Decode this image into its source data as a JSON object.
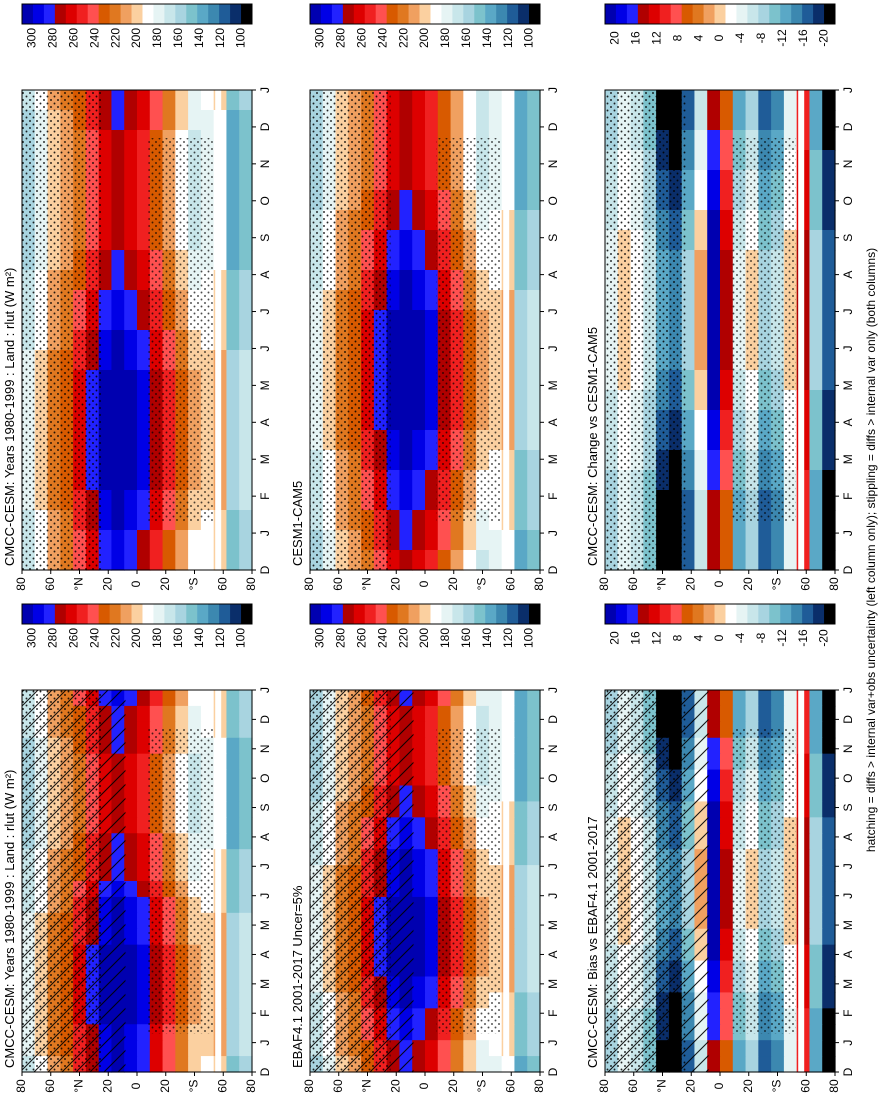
{
  "chart_data": [
    {
      "type": "heatmap",
      "id": "p1",
      "title": "CMCC-CESM: Years 1980-1999 : Land : rlut (W m²)",
      "x_ticks": [
        "D",
        "J",
        "F",
        "M",
        "A",
        "M",
        "J",
        "J",
        "A",
        "S",
        "O",
        "N",
        "D",
        "J"
      ],
      "y_ticks": [
        "80",
        "60",
        "°N",
        "20",
        "0",
        "20",
        "°S",
        "60",
        "80"
      ],
      "colorbar_ticks": [
        "300",
        "280",
        "260",
        "240",
        "220",
        "200",
        "180",
        "160",
        "140",
        "120",
        "100"
      ],
      "overlay": "hatching + stippling",
      "colorscale": "absolute"
    },
    {
      "type": "heatmap",
      "id": "p2",
      "title": "CMCC-CESM: Years 1980-1999 : Land : rlut (W m²)",
      "x_ticks": [
        "D",
        "J",
        "F",
        "M",
        "A",
        "M",
        "J",
        "J",
        "A",
        "S",
        "O",
        "N",
        "D",
        "J"
      ],
      "y_ticks": [
        "80",
        "60",
        "°N",
        "20",
        "0",
        "20",
        "°S",
        "60",
        "80"
      ],
      "colorbar_ticks": [
        "300",
        "280",
        "260",
        "240",
        "220",
        "200",
        "180",
        "160",
        "140",
        "120",
        "100"
      ],
      "overlay": "stippling",
      "colorscale": "absolute"
    },
    {
      "type": "heatmap",
      "id": "p3",
      "title": "EBAF4.1 2001-2017 Uncer=5%",
      "x_ticks": [
        "D",
        "J",
        "F",
        "M",
        "A",
        "M",
        "J",
        "J",
        "A",
        "S",
        "O",
        "N",
        "D",
        "J"
      ],
      "y_ticks": [
        "80",
        "60",
        "°N",
        "20",
        "0",
        "20",
        "°S",
        "60",
        "80"
      ],
      "colorbar_ticks": [
        "300",
        "280",
        "260",
        "240",
        "220",
        "200",
        "180",
        "160",
        "140",
        "120",
        "100"
      ],
      "overlay": "hatching + stippling",
      "colorscale": "absolute"
    },
    {
      "type": "heatmap",
      "id": "p4",
      "title": "CESM1-CAM5",
      "x_ticks": [
        "D",
        "J",
        "F",
        "M",
        "A",
        "M",
        "J",
        "J",
        "A",
        "S",
        "O",
        "N",
        "D",
        "J"
      ],
      "y_ticks": [
        "80",
        "60",
        "°N",
        "20",
        "0",
        "20",
        "°S",
        "60",
        "80"
      ],
      "colorbar_ticks": [
        "300",
        "280",
        "260",
        "240",
        "220",
        "200",
        "180",
        "160",
        "140",
        "120",
        "100"
      ],
      "overlay": "stippling",
      "colorscale": "absolute"
    },
    {
      "type": "heatmap",
      "id": "p5",
      "title": "CMCC-CESM: Bias vs EBAF4.1 2001-2017",
      "x_ticks": [
        "D",
        "J",
        "F",
        "M",
        "A",
        "M",
        "J",
        "J",
        "A",
        "S",
        "O",
        "N",
        "D",
        "J"
      ],
      "y_ticks": [
        "80",
        "60",
        "°N",
        "20",
        "0",
        "20",
        "°S",
        "60",
        "80"
      ],
      "colorbar_ticks": [
        "20",
        "16",
        "12",
        "8",
        "4",
        "0",
        "-4",
        "-8",
        "-12",
        "-16",
        "-20"
      ],
      "overlay": "hatching + stippling",
      "colorscale": "difference"
    },
    {
      "type": "heatmap",
      "id": "p6",
      "title": "CMCC-CESM: Change vs CESM1-CAM5",
      "x_ticks": [
        "D",
        "J",
        "F",
        "M",
        "A",
        "M",
        "J",
        "J",
        "A",
        "S",
        "O",
        "N",
        "D",
        "J"
      ],
      "y_ticks": [
        "80",
        "60",
        "°N",
        "20",
        "0",
        "20",
        "°S",
        "60",
        "80"
      ],
      "colorbar_ticks": [
        "20",
        "16",
        "12",
        "8",
        "4",
        "0",
        "-4",
        "-8",
        "-12",
        "-16",
        "-20"
      ],
      "overlay": "stippling",
      "colorscale": "difference"
    }
  ],
  "colors": {
    "absolute": [
      "#0000b0",
      "#0000e6",
      "#2222ff",
      "#b00000",
      "#dd0000",
      "#f02020",
      "#ff5050",
      "#d85a00",
      "#e07820",
      "#f0a060",
      "#fbd0a0",
      "#ffffff",
      "#e6f4f4",
      "#c8e6ea",
      "#a8d4e0",
      "#7cc2cc",
      "#5aa8c6",
      "#3c88b0",
      "#1f5c98",
      "#0a2e6a",
      "#000000"
    ],
    "difference": [
      "#0000b0",
      "#0000e6",
      "#2222ff",
      "#b00000",
      "#dd0000",
      "#f02020",
      "#ff5050",
      "#d85a00",
      "#e07820",
      "#f0a060",
      "#fbd0a0",
      "#ffffff",
      "#e6f4f4",
      "#c8e6ea",
      "#a8d4e0",
      "#7cc2cc",
      "#5aa8c6",
      "#3c88b0",
      "#1f5c98",
      "#0a2e6a",
      "#000000"
    ]
  },
  "footnote": "hatching = diffs > internal var+obs uncertainty (left column only); stippling = diffs > internal var only (both columns)"
}
